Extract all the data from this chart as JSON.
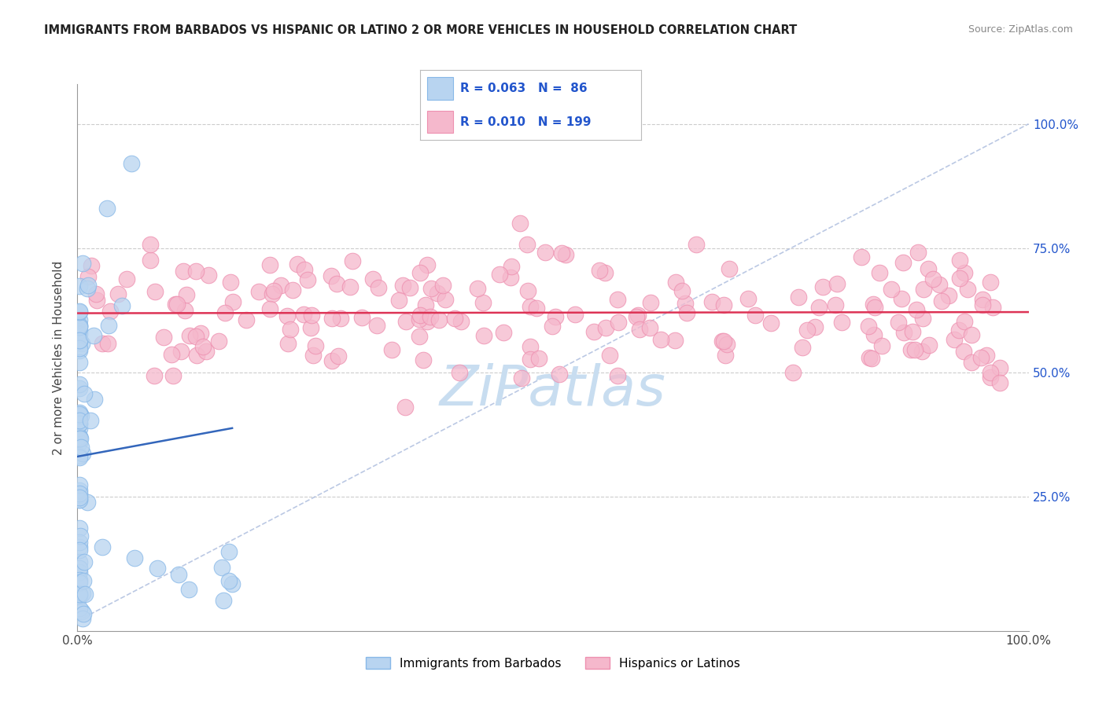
{
  "title": "IMMIGRANTS FROM BARBADOS VS HISPANIC OR LATINO 2 OR MORE VEHICLES IN HOUSEHOLD CORRELATION CHART",
  "source": "Source: ZipAtlas.com",
  "ylabel": "2 or more Vehicles in Household",
  "xlim": [
    0.0,
    1.0
  ],
  "ylim": [
    -0.02,
    1.08
  ],
  "blue_R": 0.063,
  "blue_N": 86,
  "pink_R": 0.01,
  "pink_N": 199,
  "blue_color": "#b8d4f0",
  "pink_color": "#f5b8cc",
  "blue_edge_color": "#88b8e8",
  "pink_edge_color": "#ee90b0",
  "blue_line_color": "#3366bb",
  "pink_line_color": "#dd3355",
  "diag_line_color": "#aabbdd",
  "legend_R_color": "#2255cc",
  "watermark_color": "#c8ddf0",
  "background_color": "#ffffff",
  "grid_color": "#cccccc",
  "right_tick_color": "#2255cc",
  "title_color": "#222222",
  "source_color": "#888888"
}
